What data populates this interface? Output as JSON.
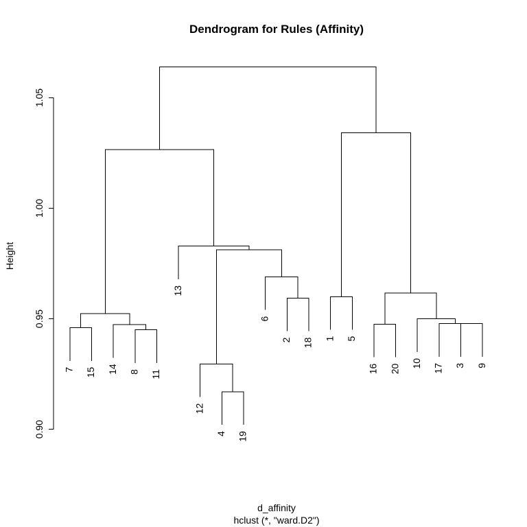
{
  "chart_data": {
    "type": "dendrogram",
    "title": "Dendrogram for Rules (Affinity)",
    "ylabel": "Height",
    "xlabel": "d_affinity",
    "sub": "hclust (*, \"ward.D2\")",
    "ylim": [
      0.885,
      1.07
    ],
    "yticks": [
      "0.90",
      "0.95",
      "1.00",
      "1.05"
    ],
    "leaf_order": [
      "7",
      "15",
      "14",
      "8",
      "11",
      "13",
      "12",
      "4",
      "19",
      "6",
      "2",
      "18",
      "1",
      "5",
      "16",
      "20",
      "10",
      "17",
      "3",
      "9"
    ],
    "merges": [
      {
        "id": "m1",
        "height": 0.946,
        "left": "7",
        "right": "15"
      },
      {
        "id": "m2",
        "height": 0.945,
        "left": "8",
        "right": "11"
      },
      {
        "id": "m3",
        "height": 0.9474,
        "left": "14",
        "right": "m2"
      },
      {
        "id": "m4",
        "height": 0.9524,
        "left": "m1",
        "right": "m3"
      },
      {
        "id": "m5",
        "height": 0.917,
        "left": "4",
        "right": "19"
      },
      {
        "id": "m6",
        "height": 0.9296,
        "left": "12",
        "right": "m5"
      },
      {
        "id": "m7",
        "height": 0.9594,
        "left": "2",
        "right": "18"
      },
      {
        "id": "m8",
        "height": 0.969,
        "left": "6",
        "right": "m7"
      },
      {
        "id": "m9",
        "height": 0.9812,
        "left": "m6",
        "right": "m8"
      },
      {
        "id": "m10",
        "height": 0.9829,
        "left": "13",
        "right": "m9"
      },
      {
        "id": "m11",
        "height": 1.0266,
        "left": "m4",
        "right": "m10"
      },
      {
        "id": "m12",
        "height": 0.96,
        "left": "1",
        "right": "5"
      },
      {
        "id": "m13",
        "height": 0.9476,
        "left": "16",
        "right": "20"
      },
      {
        "id": "m14",
        "height": 0.9478,
        "left": "3",
        "right": "9"
      },
      {
        "id": "m15",
        "height": 0.9478,
        "left": "17",
        "right": "m14"
      },
      {
        "id": "m16",
        "height": 0.95,
        "left": "10",
        "right": "m15"
      },
      {
        "id": "m17",
        "height": 0.9616,
        "left": "m13",
        "right": "m16"
      },
      {
        "id": "m18",
        "height": 1.0341,
        "left": "m12",
        "right": "m17"
      },
      {
        "id": "m19",
        "height": 1.064,
        "left": "m11",
        "right": "m18"
      }
    ],
    "leaf_hang": 0.015,
    "grid": false,
    "legend": "none"
  }
}
